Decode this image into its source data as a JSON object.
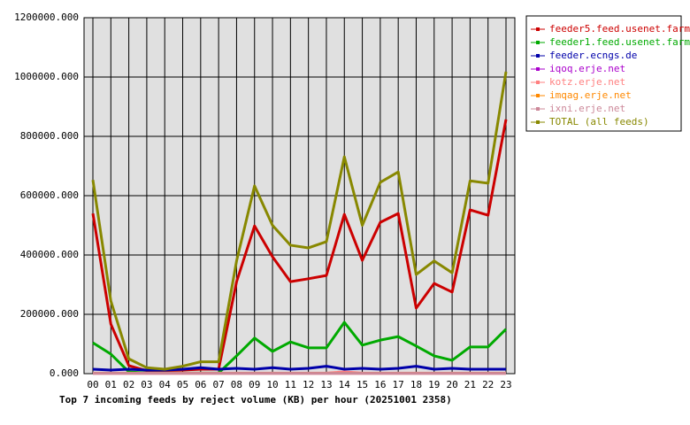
{
  "chart_data": {
    "type": "line",
    "title": "Top 7 incoming feeds by reject volume (KB) per hour (20251001 2358)",
    "categories": [
      "00",
      "01",
      "02",
      "03",
      "04",
      "05",
      "06",
      "07",
      "08",
      "09",
      "10",
      "11",
      "12",
      "13",
      "14",
      "15",
      "16",
      "17",
      "18",
      "19",
      "20",
      "21",
      "22",
      "23"
    ],
    "ylim": [
      0,
      1200000
    ],
    "yticks": [
      {
        "value": 0,
        "label": "0.000"
      },
      {
        "value": 200000,
        "label": "200000.000"
      },
      {
        "value": 400000,
        "label": "400000.000"
      },
      {
        "value": 600000,
        "label": "600000.000"
      },
      {
        "value": 800000,
        "label": "800000.000"
      },
      {
        "value": 1000000,
        "label": "1000000.000"
      },
      {
        "value": 1200000,
        "label": "1200000.000"
      }
    ],
    "grid": true,
    "legend": "right",
    "series": [
      {
        "name": "feeder5.feed.usenet.farm",
        "color": "#cc0000",
        "values": [
          540000,
          167000,
          27000,
          10000,
          10000,
          12000,
          15000,
          15000,
          310000,
          498000,
          394000,
          310000,
          320000,
          331000,
          537000,
          382000,
          510000,
          540000,
          221000,
          304000,
          275000,
          552000,
          534000,
          857000
        ]
      },
      {
        "name": "feeder1.feed.usenet.farm",
        "color": "#00aa00",
        "values": [
          104000,
          66000,
          6000,
          2000,
          2000,
          2000,
          2000,
          2000,
          60000,
          120000,
          75000,
          107000,
          87000,
          87000,
          173000,
          96000,
          113000,
          125000,
          93000,
          60000,
          45000,
          90000,
          90000,
          150000
        ]
      },
      {
        "name": "feeder.ecngs.de",
        "color": "#0000aa",
        "values": [
          15000,
          12000,
          15000,
          12000,
          12000,
          15000,
          20000,
          15000,
          18000,
          15000,
          20000,
          15000,
          18000,
          25000,
          15000,
          18000,
          15000,
          18000,
          25000,
          15000,
          18000,
          15000,
          15000,
          15000
        ]
      },
      {
        "name": "iqoq.erje.net",
        "color": "#aa00cc",
        "values": [
          1000,
          1000,
          1000,
          1000,
          1000,
          1000,
          1000,
          1000,
          1000,
          1000,
          1000,
          1000,
          1000,
          1000,
          1000,
          1000,
          1000,
          1000,
          1000,
          1000,
          1000,
          1000,
          1000,
          1000
        ]
      },
      {
        "name": "kotz.erje.net",
        "color": "#ff8080",
        "values": [
          2000,
          2000,
          2000,
          2000,
          2000,
          2000,
          2000,
          2000,
          2000,
          2000,
          2000,
          2000,
          2000,
          2000,
          6000,
          2000,
          2000,
          2000,
          2000,
          2000,
          2000,
          2000,
          2000,
          2000
        ]
      },
      {
        "name": "imqag.erje.net",
        "color": "#ff8800",
        "values": [
          1000,
          1000,
          1000,
          1000,
          1000,
          1000,
          1000,
          1000,
          1000,
          1000,
          1000,
          1000,
          1000,
          1000,
          1000,
          1000,
          1000,
          1000,
          1000,
          1000,
          1000,
          1000,
          1000,
          1000
        ]
      },
      {
        "name": "ixni.erje.net",
        "color": "#cc8899",
        "values": [
          1000,
          1000,
          1000,
          1000,
          1000,
          1000,
          1000,
          1000,
          1000,
          1000,
          1000,
          1000,
          1000,
          1000,
          1000,
          1000,
          1000,
          1000,
          1000,
          1000,
          1000,
          1000,
          1000,
          1000
        ]
      },
      {
        "name": "TOTAL (all feeds)",
        "color": "#888800",
        "values": [
          653000,
          245000,
          50000,
          20000,
          15000,
          25000,
          40000,
          40000,
          380000,
          633000,
          500000,
          433000,
          424000,
          445000,
          731000,
          500000,
          645000,
          680000,
          334000,
          380000,
          340000,
          650000,
          642000,
          1018000
        ]
      }
    ]
  }
}
